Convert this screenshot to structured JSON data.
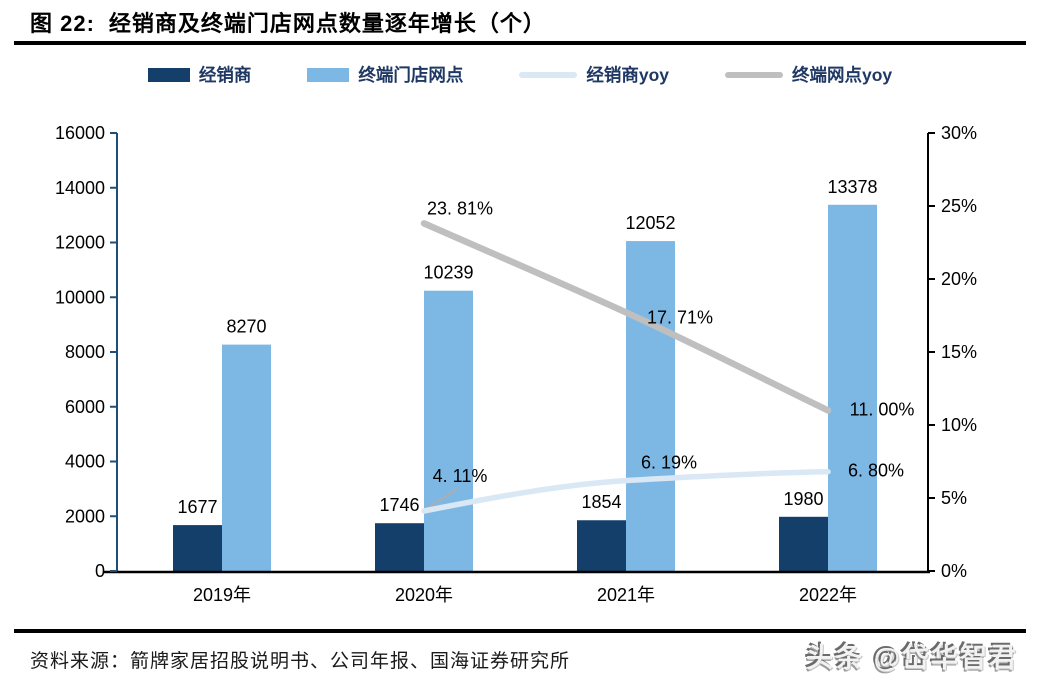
{
  "figure": {
    "number_label": "图 22:",
    "title": "经销商及终端门店网点数量逐年增长（个）",
    "source_label": "资料来源：",
    "source_text": "箭牌家居招股说明书、公司年报、国海证券研究所",
    "watermark": "头条 @岱华智君"
  },
  "chart_data": {
    "type": "bar",
    "subtype": "grouped bars with two yoy lines on secondary axis",
    "categories": [
      "2019年",
      "2020年",
      "2021年",
      "2022年"
    ],
    "series": [
      {
        "name": "经销商",
        "kind": "bar",
        "axis": "left",
        "color": "#143F6B",
        "values": [
          1677,
          1746,
          1854,
          1980
        ],
        "labels": [
          "1677",
          "1746",
          "1854",
          "1980"
        ]
      },
      {
        "name": "终端门店网点",
        "kind": "bar",
        "axis": "left",
        "color": "#7DB8E4",
        "values": [
          8270,
          10239,
          12052,
          13378
        ],
        "labels": [
          "8270",
          "10239",
          "12052",
          "13378"
        ]
      },
      {
        "name": "经销商yoy",
        "kind": "line",
        "axis": "right",
        "color": "#D9E8F4",
        "values": [
          null,
          4.11,
          6.19,
          6.8
        ],
        "labels": [
          "4. 11%",
          "6. 19%",
          "6. 80%"
        ]
      },
      {
        "name": "终端网点yoy",
        "kind": "line",
        "axis": "right",
        "color": "#BFBFBF",
        "values": [
          null,
          23.81,
          17.71,
          11.0
        ],
        "labels": [
          "23. 81%",
          "17. 71%",
          "11. 00%"
        ]
      }
    ],
    "left_axis": {
      "min": 0,
      "max": 16000,
      "step": 2000,
      "tick_labels": [
        "0",
        "2000",
        "4000",
        "6000",
        "8000",
        "10000",
        "12000",
        "14000",
        "16000"
      ],
      "line_color": "#1F4E79"
    },
    "right_axis": {
      "min": 0,
      "max": 30,
      "step": 5,
      "tick_labels": [
        "0%",
        "5%",
        "10%",
        "15%",
        "20%",
        "25%",
        "30%"
      ],
      "line_color": "#000000"
    },
    "x_axis": {
      "line_color": "#000000"
    },
    "legend_position": "top",
    "grid": false,
    "label_color": "#000000"
  }
}
